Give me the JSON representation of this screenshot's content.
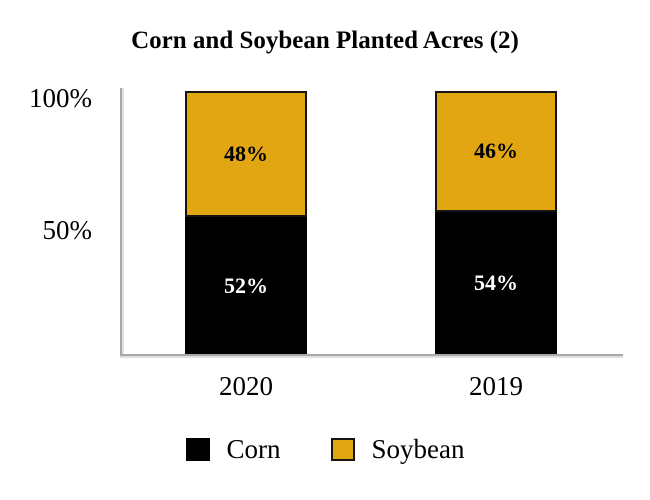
{
  "chart_data": {
    "type": "bar",
    "stacked": true,
    "orientation": "vertical",
    "title": "Corn and Soybean Planted Acres (2)",
    "categories": [
      "2020",
      "2019"
    ],
    "series": [
      {
        "name": "Corn",
        "color": "#000000",
        "label_color": "#ffffff",
        "values": [
          52,
          54
        ]
      },
      {
        "name": "Soybean",
        "color": "#e2a612",
        "label_color": "#000000",
        "values": [
          48,
          46
        ]
      }
    ],
    "value_suffix": "%",
    "ylim": [
      0,
      100
    ],
    "ytick_labels": [
      "100%",
      "50%"
    ],
    "grid": false,
    "legend_position": "bottom",
    "axis_color": "#a8a8a8"
  }
}
